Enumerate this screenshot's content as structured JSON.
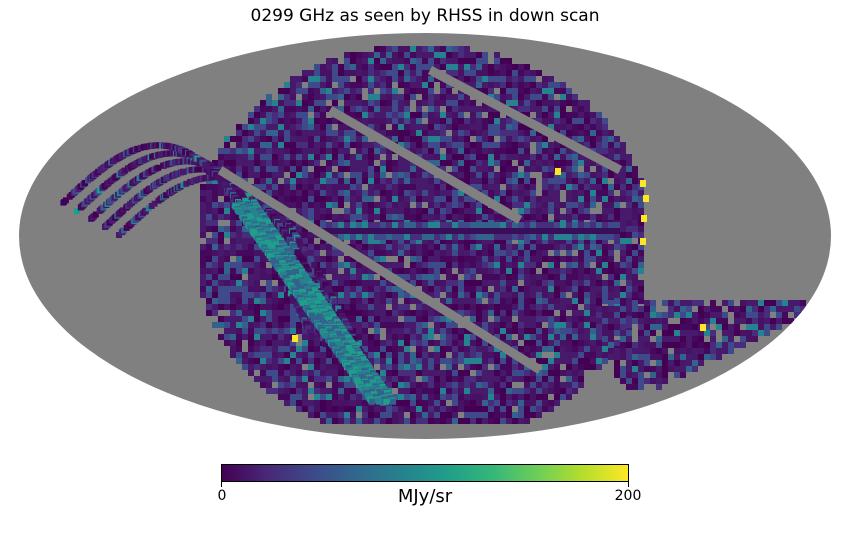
{
  "title": "0299 GHz as seen by RHSS in down scan",
  "projection": "mollweide",
  "colormap": "viridis",
  "colorbar": {
    "min_label": "0",
    "max_label": "200",
    "unit": "MJy/sr",
    "range": [
      0,
      200
    ]
  },
  "colors": {
    "masked": "#808080",
    "low": "#440154",
    "high": "#fde725"
  }
}
